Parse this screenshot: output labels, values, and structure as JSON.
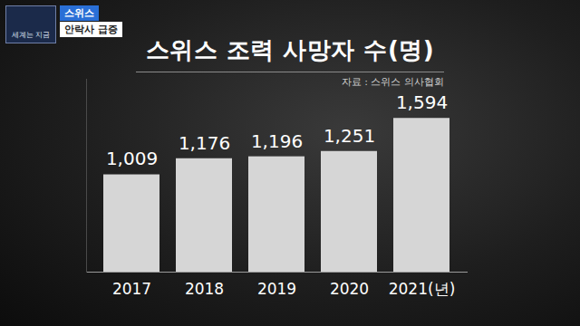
{
  "chart_data": {
    "type": "bar",
    "title": "스위스 조력 사망자 수(명)",
    "subtitle": "자료 : 스위스 의사협회",
    "annotations": [
      "스위스",
      "안락사 급증",
      "세계는 지금"
    ],
    "categories": [
      "2017",
      "2018",
      "2019",
      "2020",
      "2021(년)"
    ],
    "values": [
      1009,
      1176,
      1196,
      1251,
      1594
    ],
    "value_labels": [
      "1,009",
      "1,176",
      "1,196",
      "1,251",
      "1,594"
    ],
    "color": "#d6d6d6",
    "ylim": [
      0,
      2000
    ],
    "grid": false,
    "data_labels": true,
    "tick_labels": "x"
  }
}
